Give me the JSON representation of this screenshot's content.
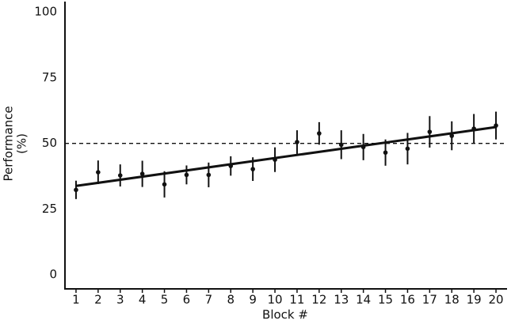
{
  "chart_data": {
    "type": "scatter",
    "xlabel": "Block #",
    "ylabel": [
      "Performance",
      "(%)"
    ],
    "x": [
      1,
      2,
      3,
      4,
      5,
      6,
      7,
      8,
      9,
      10,
      11,
      12,
      13,
      14,
      15,
      16,
      17,
      18,
      19,
      20
    ],
    "series": [
      {
        "color": "#111111",
        "values": [
          32.3,
          39,
          37.8,
          38.4,
          34.4,
          38,
          38,
          41.4,
          40.2,
          43.8,
          50.5,
          53.8,
          49.5,
          48.6,
          46.5,
          48,
          54.4,
          52.9,
          55.6,
          56.8
        ],
        "errors": [
          3.5,
          4.5,
          4.2,
          5,
          5,
          3.6,
          4.7,
          3.7,
          4.5,
          4.7,
          4.5,
          4.3,
          5.5,
          5,
          5,
          6,
          6,
          5.5,
          5.6,
          5.3
        ]
      }
    ],
    "trend": {
      "x": [
        1,
        20
      ],
      "values": [
        33.8,
        56.2
      ]
    },
    "reference_line": 50,
    "xlim": [
      0.5,
      20.5
    ],
    "ylim": [
      -5.4,
      104
    ],
    "xticks": [
      1,
      2,
      3,
      4,
      5,
      6,
      7,
      8,
      9,
      10,
      11,
      12,
      13,
      14,
      15,
      16,
      17,
      18,
      19,
      20
    ],
    "yticks": [
      0,
      25,
      50,
      75,
      100
    ]
  }
}
